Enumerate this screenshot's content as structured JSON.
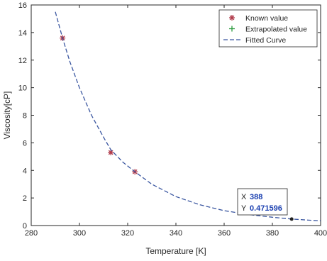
{
  "chart_data": {
    "type": "line",
    "xlabel": "Temperature [K]",
    "ylabel": "Viscosity[cP]",
    "xlim": [
      280,
      400
    ],
    "ylim": [
      0,
      16
    ],
    "xticks": [
      280,
      300,
      320,
      340,
      360,
      380,
      400
    ],
    "yticks": [
      0,
      2,
      4,
      6,
      8,
      10,
      12,
      14,
      16
    ],
    "xtick_labels": [
      "280",
      "300",
      "320",
      "340",
      "360",
      "380",
      "400"
    ],
    "ytick_labels": [
      "0",
      "2",
      "4",
      "6",
      "8",
      "10",
      "12",
      "14",
      "16"
    ],
    "grid": false,
    "legend_position": "top-right",
    "series": [
      {
        "name": "Known value",
        "kind": "scatter",
        "marker": "asterisk",
        "color": "#b03a4a",
        "x": [
          293,
          313,
          323
        ],
        "y": [
          13.6,
          5.3,
          3.9
        ]
      },
      {
        "name": "Extrapolated value",
        "kind": "scatter",
        "marker": "plus",
        "color": "#2a9a3c",
        "x": [],
        "y": []
      },
      {
        "name": "Fitted Curve",
        "kind": "line",
        "line_style": "dashed",
        "color": "#3a56a0",
        "x": [
          290,
          293,
          296,
          300,
          305,
          310,
          313,
          318,
          323,
          330,
          340,
          350,
          360,
          370,
          380,
          388,
          395,
          400
        ],
        "y": [
          15.5,
          13.6,
          11.9,
          10.0,
          8.0,
          6.4,
          5.5,
          4.6,
          3.9,
          3.0,
          2.1,
          1.5,
          1.08,
          0.8,
          0.6,
          0.471596,
          0.39,
          0.34
        ]
      }
    ],
    "datatip": {
      "x_label": "X",
      "x_value": "388",
      "y_label": "Y",
      "y_value": "0.471596",
      "x": 388,
      "y": 0.471596
    }
  },
  "colors": {
    "axes": "#262626",
    "text": "#262626",
    "datatip_value": "#1a3fb0",
    "datatip_bg": "#ffffff"
  }
}
